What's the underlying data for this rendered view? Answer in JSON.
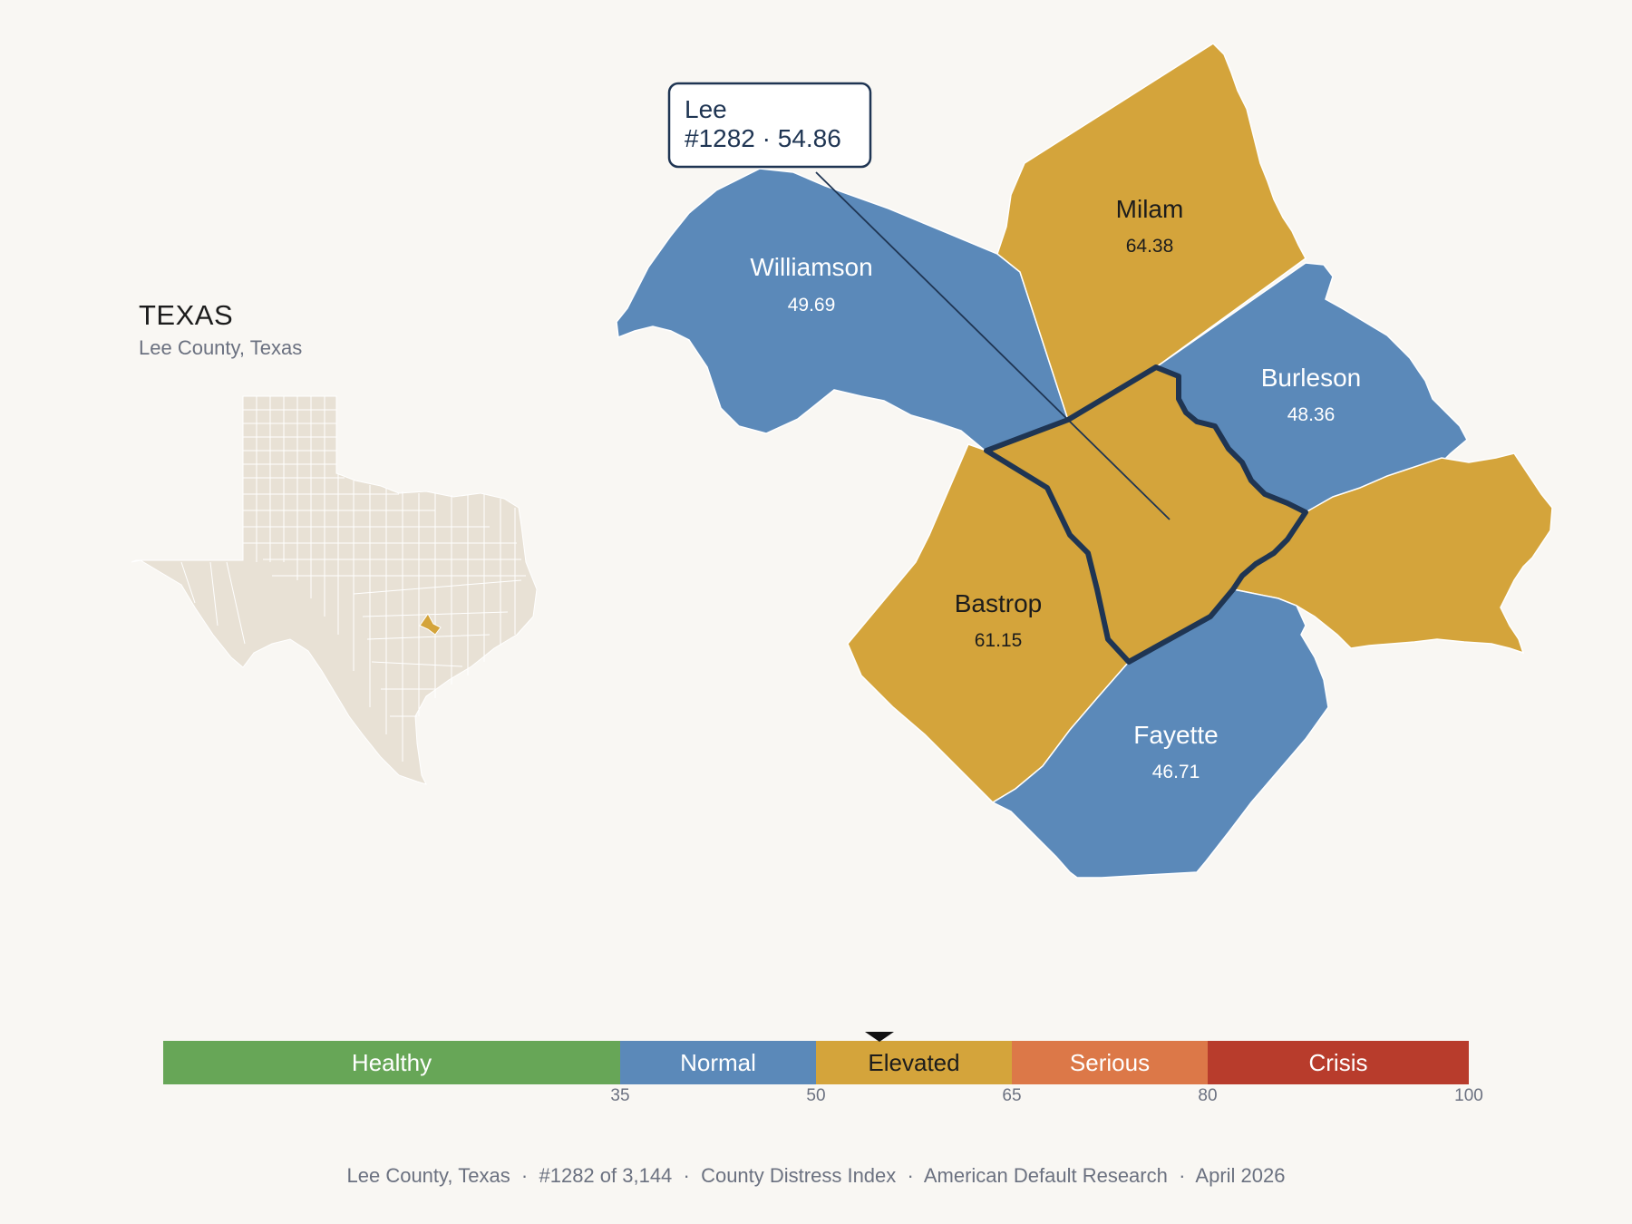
{
  "inset": {
    "state_title": "TEXAS",
    "subtitle": "Lee County, Texas"
  },
  "callout": {
    "name": "Lee",
    "rank_value": "#1282 · 54.86"
  },
  "counties": [
    {
      "id": "williamson",
      "name": "Williamson",
      "value": "49.69",
      "category": "Normal"
    },
    {
      "id": "milam",
      "name": "Milam",
      "value": "64.38",
      "category": "Elevated"
    },
    {
      "id": "burleson",
      "name": "Burleson",
      "value": "48.36",
      "category": "Normal"
    },
    {
      "id": "bastrop",
      "name": "Bastrop",
      "value": "61.15",
      "category": "Elevated"
    },
    {
      "id": "fayette",
      "name": "Fayette",
      "value": "46.71",
      "category": "Normal"
    },
    {
      "id": "lee",
      "name": "Lee",
      "value": "54.86",
      "category": "Elevated"
    }
  ],
  "legend": {
    "bands": [
      {
        "label": "Healthy",
        "min": 0,
        "max": 35,
        "color": "#67a657",
        "text_color": "#ffffff"
      },
      {
        "label": "Normal",
        "min": 35,
        "max": 50,
        "color": "#5b89b9",
        "text_color": "#ffffff"
      },
      {
        "label": "Elevated",
        "min": 50,
        "max": 65,
        "color": "#d4a43b",
        "text_color": "#1c1c1c"
      },
      {
        "label": "Serious",
        "min": 65,
        "max": 80,
        "color": "#dc7848",
        "text_color": "#ffffff"
      },
      {
        "label": "Crisis",
        "min": 80,
        "max": 100,
        "color": "#b83c2c",
        "text_color": "#ffffff"
      }
    ],
    "ticks": [
      "35",
      "50",
      "65",
      "80",
      "100"
    ],
    "marker_value": 54.86
  },
  "colors": {
    "normal": "#5b89b9",
    "elevated": "#d4a43b",
    "outline": "#1f3553",
    "inset_fill": "#e8e1d5"
  },
  "footer": {
    "county": "Lee County, Texas",
    "rank": "#1282 of 3,144",
    "index": "County Distress Index",
    "source": "American Default Research",
    "date": "April 2026"
  }
}
